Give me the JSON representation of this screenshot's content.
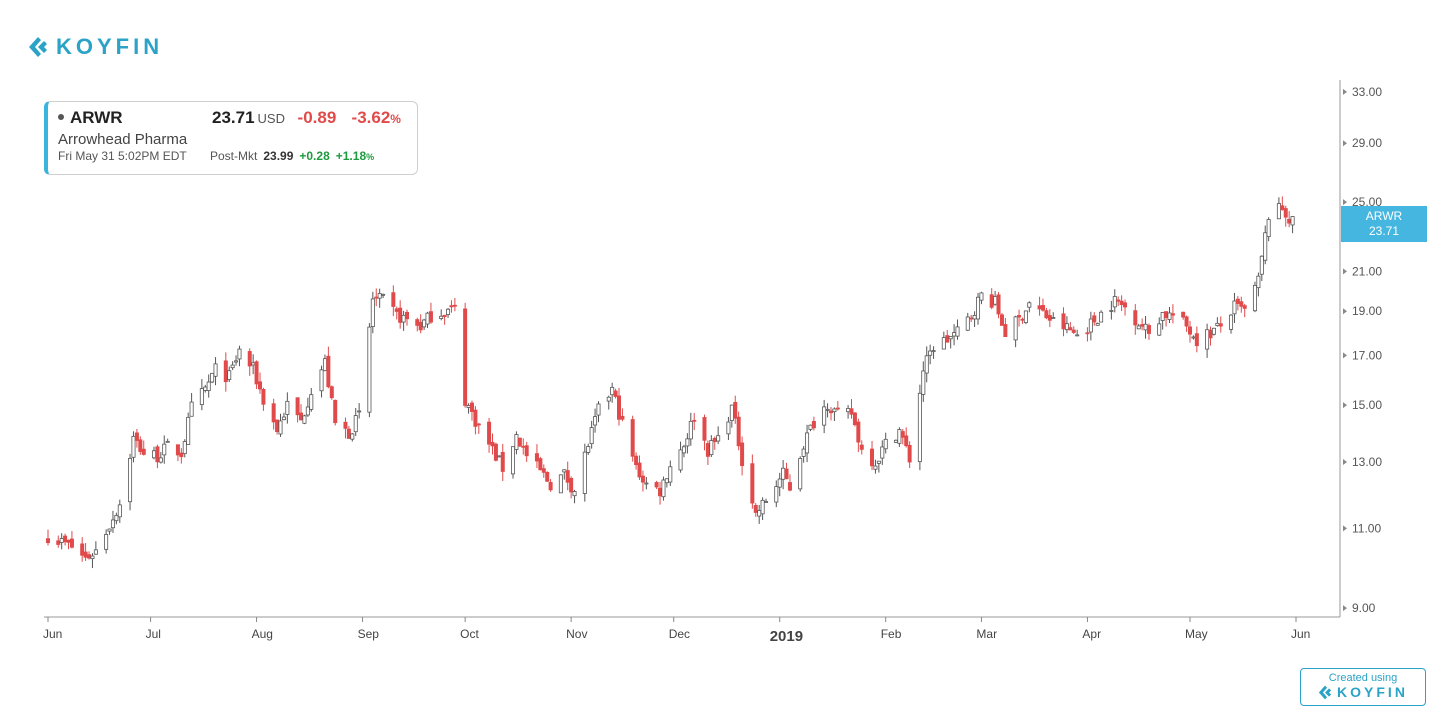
{
  "brand": {
    "name": "KOYFIN",
    "badge_prefix": "Created using",
    "accent": "#2aa3c7"
  },
  "quote": {
    "ticker": "ARWR",
    "price": "23.71",
    "currency": "USD",
    "change": "-0.89",
    "change_pct": "-3.62",
    "pct_sign": "%",
    "company": "Arrowhead Pharma",
    "datetime": "Fri May 31 5:02PM EDT",
    "post_label": "Post-Mkt",
    "post_price": "23.99",
    "post_change": "+0.28",
    "post_change_pct": "+1.18",
    "post_pct_sign": "%"
  },
  "price_tag": {
    "ticker": "ARWR",
    "value": "23.71",
    "color": "#45b6e0"
  },
  "chart_data": {
    "type": "candlestick",
    "title": "",
    "xlabel": "",
    "ylabel": "",
    "y_scale": "log",
    "ylim": [
      8.8,
      34.0
    ],
    "y_ticks": [
      "33.00",
      "29.00",
      "25.00",
      "21.00",
      "19.00",
      "17.00",
      "15.00",
      "13.00",
      "11.00",
      "9.00"
    ],
    "x_ticks": [
      {
        "label": "Jun",
        "date": "2018-06-01"
      },
      {
        "label": "Jul",
        "date": "2018-07-01"
      },
      {
        "label": "Aug",
        "date": "2018-08-01"
      },
      {
        "label": "Sep",
        "date": "2018-09-01"
      },
      {
        "label": "Oct",
        "date": "2018-10-01"
      },
      {
        "label": "Nov",
        "date": "2018-11-01"
      },
      {
        "label": "Dec",
        "date": "2018-12-01"
      },
      {
        "label": "2019",
        "date": "2019-01-01",
        "bold": true
      },
      {
        "label": "Feb",
        "date": "2019-02-01"
      },
      {
        "label": "Mar",
        "date": "2019-03-01"
      },
      {
        "label": "Apr",
        "date": "2019-04-01"
      },
      {
        "label": "May",
        "date": "2019-05-01"
      },
      {
        "label": "Jun",
        "date": "2019-06-01"
      }
    ],
    "x_range": [
      "2018-06-01",
      "2019-06-01"
    ],
    "up_color": "#ffffff",
    "down_color": "#e04a4a",
    "close_path": [
      [
        "2018-06-01",
        10.8
      ],
      [
        "2018-06-08",
        10.5
      ],
      [
        "2018-06-12",
        10.2
      ],
      [
        "2018-06-15",
        10.4
      ],
      [
        "2018-06-19",
        11.1
      ],
      [
        "2018-06-22",
        11.7
      ],
      [
        "2018-06-26",
        13.8
      ],
      [
        "2018-06-29",
        13.3
      ],
      [
        "2018-07-03",
        13.2
      ],
      [
        "2018-07-06",
        13.5
      ],
      [
        "2018-07-10",
        13.3
      ],
      [
        "2018-07-13",
        14.9
      ],
      [
        "2018-07-17",
        15.6
      ],
      [
        "2018-07-20",
        16.4
      ],
      [
        "2018-07-24",
        16.1
      ],
      [
        "2018-07-27",
        17.2
      ],
      [
        "2018-07-31",
        16.4
      ],
      [
        "2018-08-03",
        15.2
      ],
      [
        "2018-08-07",
        14.1
      ],
      [
        "2018-08-10",
        15.0
      ],
      [
        "2018-08-14",
        14.4
      ],
      [
        "2018-08-17",
        15.6
      ],
      [
        "2018-08-21",
        16.7
      ],
      [
        "2018-08-24",
        14.3
      ],
      [
        "2018-08-28",
        14.0
      ],
      [
        "2018-08-31",
        14.6
      ],
      [
        "2018-09-04",
        19.6
      ],
      [
        "2018-09-07",
        19.5
      ],
      [
        "2018-09-11",
        18.8
      ],
      [
        "2018-09-14",
        18.6
      ],
      [
        "2018-09-18",
        18.3
      ],
      [
        "2018-09-21",
        18.8
      ],
      [
        "2018-09-25",
        19.0
      ],
      [
        "2018-09-28",
        19.1
      ],
      [
        "2018-10-01",
        15.2
      ],
      [
        "2018-10-05",
        14.2
      ],
      [
        "2018-10-09",
        13.4
      ],
      [
        "2018-10-12",
        12.8
      ],
      [
        "2018-10-16",
        13.9
      ],
      [
        "2018-10-19",
        13.2
      ],
      [
        "2018-10-23",
        12.7
      ],
      [
        "2018-10-26",
        12.3
      ],
      [
        "2018-10-30",
        12.6
      ],
      [
        "2018-11-02",
        12.1
      ],
      [
        "2018-11-06",
        13.6
      ],
      [
        "2018-11-09",
        14.8
      ],
      [
        "2018-11-13",
        15.6
      ],
      [
        "2018-11-16",
        14.3
      ],
      [
        "2018-11-20",
        12.8
      ],
      [
        "2018-11-23",
        12.3
      ],
      [
        "2018-11-27",
        12.1
      ],
      [
        "2018-11-30",
        12.9
      ],
      [
        "2018-12-04",
        13.6
      ],
      [
        "2018-12-07",
        14.6
      ],
      [
        "2018-12-11",
        13.4
      ],
      [
        "2018-12-14",
        13.8
      ],
      [
        "2018-12-18",
        14.9
      ],
      [
        "2018-12-21",
        13.1
      ],
      [
        "2018-12-25",
        11.4
      ],
      [
        "2018-12-28",
        11.8
      ],
      [
        "2019-01-02",
        12.6
      ],
      [
        "2019-01-04",
        12.2
      ],
      [
        "2019-01-08",
        13.6
      ],
      [
        "2019-01-11",
        14.4
      ],
      [
        "2019-01-15",
        15.1
      ],
      [
        "2019-01-18",
        14.6
      ],
      [
        "2019-01-22",
        14.7
      ],
      [
        "2019-01-25",
        13.4
      ],
      [
        "2019-01-29",
        13.0
      ],
      [
        "2019-02-01",
        13.6
      ],
      [
        "2019-02-05",
        14.1
      ],
      [
        "2019-02-08",
        13.1
      ],
      [
        "2019-02-12",
        16.4
      ],
      [
        "2019-02-15",
        17.4
      ],
      [
        "2019-02-19",
        17.7
      ],
      [
        "2019-02-22",
        18.0
      ],
      [
        "2019-02-26",
        18.8
      ],
      [
        "2019-03-01",
        19.8
      ],
      [
        "2019-03-05",
        19.4
      ],
      [
        "2019-03-08",
        18.0
      ],
      [
        "2019-03-12",
        18.6
      ],
      [
        "2019-03-15",
        19.4
      ],
      [
        "2019-03-19",
        18.9
      ],
      [
        "2019-03-22",
        18.5
      ],
      [
        "2019-03-26",
        18.2
      ],
      [
        "2019-03-29",
        17.9
      ],
      [
        "2019-04-02",
        18.4
      ],
      [
        "2019-04-05",
        18.9
      ],
      [
        "2019-04-09",
        19.5
      ],
      [
        "2019-04-12",
        19.2
      ],
      [
        "2019-04-16",
        18.5
      ],
      [
        "2019-04-19",
        18.0
      ],
      [
        "2019-04-23",
        18.9
      ],
      [
        "2019-04-26",
        18.8
      ],
      [
        "2019-04-30",
        18.3
      ],
      [
        "2019-05-03",
        17.7
      ],
      [
        "2019-05-07",
        18.0
      ],
      [
        "2019-05-10",
        18.3
      ],
      [
        "2019-05-14",
        19.2
      ],
      [
        "2019-05-17",
        19.0
      ],
      [
        "2019-05-21",
        20.5
      ],
      [
        "2019-05-24",
        24.2
      ],
      [
        "2019-05-28",
        24.6
      ],
      [
        "2019-05-31",
        23.71
      ]
    ]
  }
}
